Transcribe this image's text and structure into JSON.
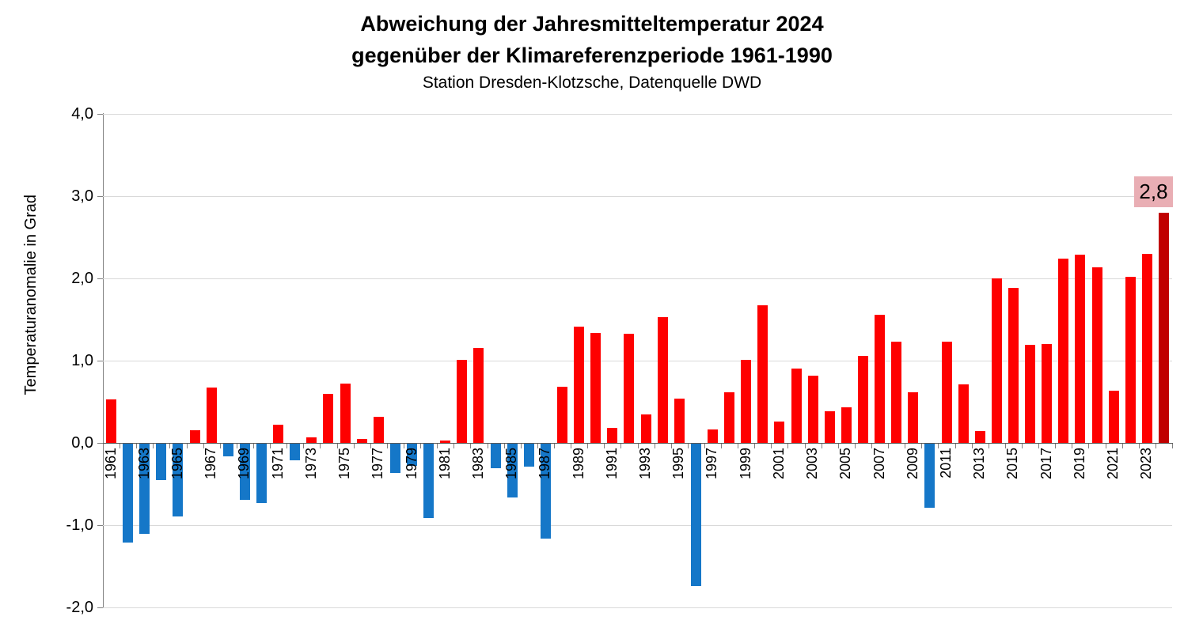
{
  "chart_data": {
    "type": "bar",
    "title": "Abweichung der Jahresmitteltemperatur 2024 gegenüber der Klimareferenzperiode 1961-1990",
    "title_line1": "Abweichung der Jahresmitteltemperatur 2024",
    "title_line2": "gegenüber der Klimareferenzperiode 1961-1990",
    "subtitle": "Station Dresden-Klotzsche, Datenquelle DWD",
    "ylabel": "Temperaturanomalie in Grad",
    "xlabel": "",
    "ylim": [
      -2.0,
      4.0
    ],
    "grid": true,
    "legend": false,
    "ytick_values": [
      4,
      3,
      2,
      1,
      0,
      -1,
      -2
    ],
    "ytick_labels": [
      "4,0",
      "3,0",
      "2,0",
      "1,0",
      "0,0",
      "-1,0",
      "-2,0"
    ],
    "xtick_labeled_years": [
      1961,
      1963,
      1965,
      1967,
      1969,
      1971,
      1973,
      1975,
      1977,
      1979,
      1981,
      1983,
      1985,
      1987,
      1989,
      1991,
      1993,
      1995,
      1997,
      1999,
      2001,
      2003,
      2005,
      2007,
      2009,
      2011,
      2013,
      2015,
      2017,
      2019,
      2021,
      2023
    ],
    "categories": [
      1961,
      1962,
      1963,
      1964,
      1965,
      1966,
      1967,
      1968,
      1969,
      1970,
      1971,
      1972,
      1973,
      1974,
      1975,
      1976,
      1977,
      1978,
      1979,
      1980,
      1981,
      1982,
      1983,
      1984,
      1985,
      1986,
      1987,
      1988,
      1989,
      1990,
      1991,
      1992,
      1993,
      1994,
      1995,
      1996,
      1997,
      1998,
      1999,
      2000,
      2001,
      2002,
      2003,
      2004,
      2005,
      2006,
      2007,
      2008,
      2009,
      2010,
      2011,
      2012,
      2013,
      2014,
      2015,
      2016,
      2017,
      2018,
      2019,
      2020,
      2021,
      2022,
      2023,
      2024
    ],
    "values": [
      0.53,
      -1.2,
      -1.1,
      -0.44,
      -0.88,
      0.15,
      0.67,
      -0.15,
      -0.68,
      -0.72,
      0.22,
      -0.2,
      0.07,
      0.6,
      0.72,
      0.05,
      0.32,
      -0.36,
      -0.27,
      -0.9,
      0.03,
      1.01,
      1.15,
      -0.3,
      -0.65,
      -0.28,
      -1.15,
      0.68,
      1.41,
      1.34,
      0.18,
      1.33,
      0.35,
      1.53,
      0.54,
      -1.73,
      0.16,
      0.62,
      1.01,
      1.67,
      0.26,
      0.9,
      0.82,
      0.38,
      0.43,
      1.06,
      1.56,
      1.23,
      0.62,
      -0.78,
      1.23,
      0.71,
      0.14,
      2.0,
      1.88,
      1.19,
      1.2,
      2.24,
      2.29,
      2.13,
      0.63,
      2.02,
      2.3,
      2.8
    ],
    "colors": {
      "positive_bar": "#fe0000",
      "negative_bar": "#1577c8",
      "highlight_2024_bar": "#c00000",
      "annotation_bg": "#e9aeb4",
      "gridline": "#d9d9d9",
      "axis_line": "#808080",
      "zero_line": "#595959"
    },
    "annotation": {
      "year": 2024,
      "text": "2,8"
    }
  }
}
